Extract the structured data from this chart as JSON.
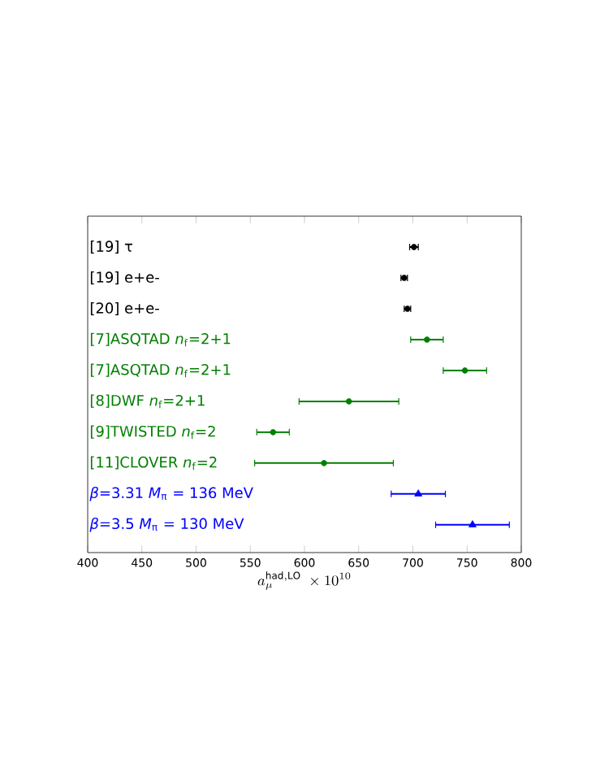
{
  "chart_data": {
    "type": "scatter",
    "xlabel": "a_{\\mu}^{\\mathrm{had,LO}}\\;\\times10^{10}",
    "categories": [
      "[19] τ",
      "[19] e+e-",
      "[20] e+e-",
      "[7]ASQTAD *n*$_{f}$=2+1",
      "[7]ASQTAD *n*$_{f}$=2+1",
      "[8]DWF *n*$_{f}$=2+1",
      "[9]TWISTED *n*$_{f}$=2",
      "[11]CLOVER *n*$_{f}$=2",
      "*β*=3.31  *M*$_{π}$ = 136 MeV",
      "*β*=3.5   *M*$_{π}$ = 130 MeV"
    ],
    "orientation": "horizontal",
    "xlim": [
      400,
      800
    ],
    "xticks": [
      400,
      450,
      500,
      550,
      600,
      650,
      700,
      750,
      800
    ],
    "grid": false,
    "series": [
      {
        "color": "#000000",
        "marker": "circle",
        "values": [
          701,
          692,
          695,
          null,
          null,
          null,
          null,
          null,
          null,
          null
        ],
        "errors": [
          4,
          3,
          3,
          null,
          null,
          null,
          null,
          null,
          null,
          null
        ]
      },
      {
        "color": "#007f00",
        "marker": "circle",
        "values": [
          null,
          null,
          null,
          713,
          748,
          641,
          571,
          618,
          null,
          null
        ],
        "errors": [
          null,
          null,
          null,
          15,
          20,
          46,
          15,
          64,
          null,
          null
        ]
      },
      {
        "color": "#0000ff",
        "marker": "triangle",
        "values": [
          null,
          null,
          null,
          null,
          null,
          null,
          null,
          null,
          705,
          755
        ],
        "errors": [
          null,
          null,
          null,
          null,
          null,
          null,
          null,
          null,
          25,
          34
        ]
      }
    ]
  }
}
